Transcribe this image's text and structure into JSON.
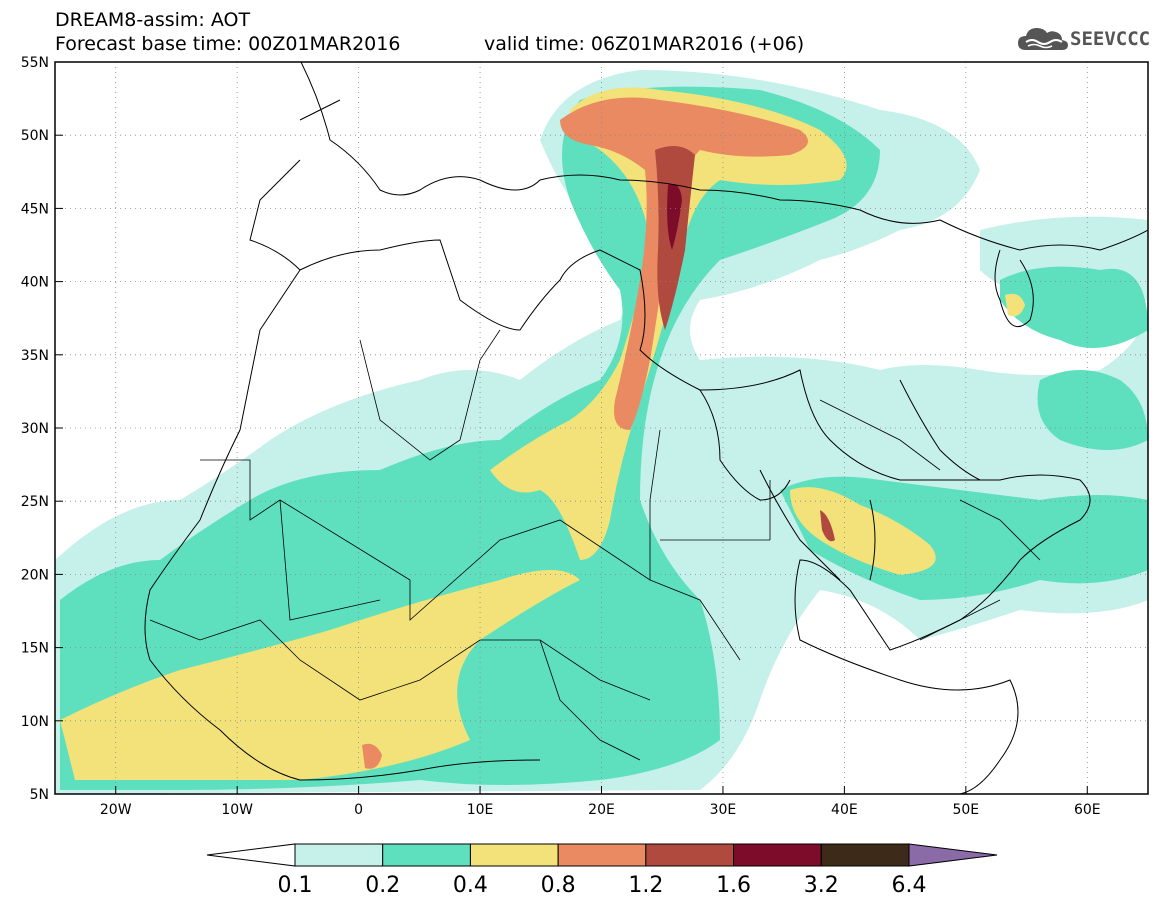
{
  "title": {
    "model": "DREAM8-assim: AOT",
    "base_time": "Forecast base time: 00Z01MAR2016",
    "valid_time": "valid time: 06Z01MAR2016 (+06)"
  },
  "logo": {
    "text": "SEEVCCC",
    "icon": "cloud-icon",
    "color": "#555555"
  },
  "map": {
    "lon_range": [
      -25,
      65
    ],
    "lat_range": [
      5,
      55
    ],
    "lon_ticks": [
      {
        "value": -20,
        "label": "20W"
      },
      {
        "value": -10,
        "label": "10W"
      },
      {
        "value": 0,
        "label": "0"
      },
      {
        "value": 10,
        "label": "10E"
      },
      {
        "value": 20,
        "label": "20E"
      },
      {
        "value": 30,
        "label": "30E"
      },
      {
        "value": 40,
        "label": "40E"
      },
      {
        "value": 50,
        "label": "50E"
      },
      {
        "value": 60,
        "label": "60E"
      }
    ],
    "lat_ticks": [
      {
        "value": 55,
        "label": "55N"
      },
      {
        "value": 50,
        "label": "50N"
      },
      {
        "value": 45,
        "label": "45N"
      },
      {
        "value": 40,
        "label": "40N"
      },
      {
        "value": 35,
        "label": "35N"
      },
      {
        "value": 30,
        "label": "30N"
      },
      {
        "value": 25,
        "label": "25N"
      },
      {
        "value": 20,
        "label": "20N"
      },
      {
        "value": 15,
        "label": "15N"
      },
      {
        "value": 10,
        "label": "10N"
      },
      {
        "value": 5,
        "label": "5N"
      }
    ],
    "grid": "dotted"
  },
  "colorbar": {
    "labels": [
      "0.1",
      "0.2",
      "0.4",
      "0.8",
      "1.2",
      "1.6",
      "3.2",
      "6.4"
    ],
    "colors": [
      "#ffffff",
      "#c6f0ea",
      "#5ee0be",
      "#f3e27a",
      "#e98a62",
      "#b04a3e",
      "#7c0c2a",
      "#3d2a18",
      "#8a6ba8"
    ]
  }
}
